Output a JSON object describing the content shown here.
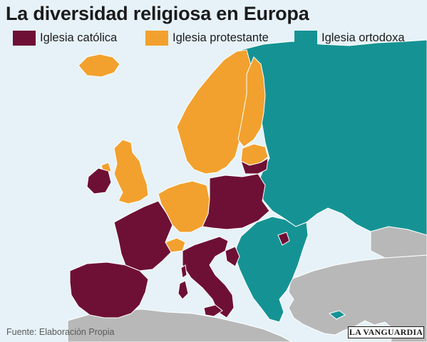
{
  "title": "La diversidad religiosa en Europa",
  "legend": [
    {
      "label": "Iglesia católica",
      "color": "#6e1035"
    },
    {
      "label": "Iglesia protestante",
      "color": "#f2a12e"
    },
    {
      "label": "Iglesia ortodoxa",
      "color": "#159394"
    }
  ],
  "colors": {
    "sea": "#e6f2f8",
    "other_land": "#b8b8b8",
    "border": "#ffffff"
  },
  "source": "Fuente: Elaboración Propia",
  "logo": "LA VANGUARDIA"
}
